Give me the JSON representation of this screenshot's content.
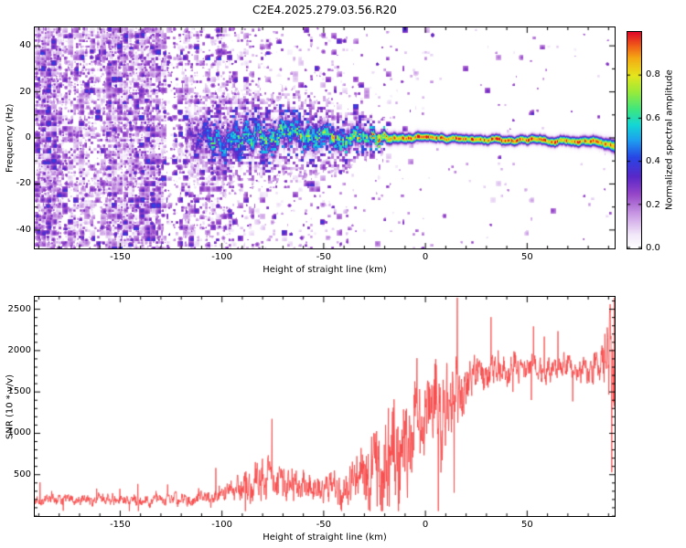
{
  "chart_data": [
    {
      "type": "heatmap",
      "title": "C2E4.2025.279.03.56.R20",
      "xlabel": "Height of straight line (km)",
      "ylabel": "Frequency (Hz)",
      "xlim": [
        -192,
        93
      ],
      "ylim": [
        -48,
        48
      ],
      "xticks": [
        {
          "v": -150,
          "label": "-150"
        },
        {
          "v": -100,
          "label": "-100"
        },
        {
          "v": -50,
          "label": "-50"
        },
        {
          "v": 0,
          "label": "0"
        },
        {
          "v": 50,
          "label": "50"
        }
      ],
      "yticks": [
        {
          "v": -40,
          "label": "-40"
        },
        {
          "v": -20,
          "label": "-20"
        },
        {
          "v": 0,
          "label": "0"
        },
        {
          "v": 20,
          "label": "20"
        },
        {
          "v": 40,
          "label": "40"
        }
      ],
      "colorbar": {
        "label": "Normalized spectral amplitude",
        "lim": [
          0,
          1
        ],
        "ticks": [
          {
            "v": 0,
            "label": "0.0"
          },
          {
            "v": 0.2,
            "label": "0.2"
          },
          {
            "v": 0.4,
            "label": "0.4"
          },
          {
            "v": 0.6,
            "label": "0.6"
          },
          {
            "v": 0.8,
            "label": "0.8"
          }
        ]
      },
      "colormap": [
        [
          0.0,
          "#ffffff"
        ],
        [
          0.06,
          "#f3e9fa"
        ],
        [
          0.15,
          "#cda0e6"
        ],
        [
          0.25,
          "#9646c8"
        ],
        [
          0.33,
          "#5a28c8"
        ],
        [
          0.42,
          "#2846e6"
        ],
        [
          0.5,
          "#1ea0f0"
        ],
        [
          0.57,
          "#14d7d7"
        ],
        [
          0.64,
          "#3ce682"
        ],
        [
          0.72,
          "#96eb3c"
        ],
        [
          0.8,
          "#e6e61e"
        ],
        [
          0.88,
          "#f5aa14"
        ],
        [
          0.94,
          "#f05a19"
        ],
        [
          1.0,
          "#e10a28"
        ]
      ],
      "noise_profile": {
        "x": [
          -192,
          -160,
          -140,
          -120,
          -100,
          -80,
          -60,
          -40,
          -20,
          0,
          93
        ],
        "density": [
          0.82,
          0.74,
          0.6,
          0.42,
          0.3,
          0.22,
          0.16,
          0.1,
          0.045,
          0.02,
          0.012
        ]
      },
      "signal_track": {
        "x": [
          -118,
          -105,
          -90,
          -75,
          -60,
          -50,
          -40,
          -30,
          -22,
          -15,
          -8,
          0,
          15,
          30,
          50,
          70,
          85,
          91,
          93
        ],
        "freq": [
          1,
          -1,
          1.5,
          -1.5,
          1,
          -0.5,
          0.5,
          0,
          0,
          0,
          0,
          0,
          -0.3,
          -0.6,
          -1,
          -1.4,
          -1.8,
          -2.2,
          -3.2
        ],
        "amp": [
          0.25,
          0.5,
          0.55,
          0.6,
          0.6,
          0.62,
          0.68,
          0.75,
          0.85,
          0.92,
          0.95,
          0.95,
          0.95,
          0.95,
          0.94,
          0.92,
          0.9,
          0.9,
          0.85
        ],
        "width_hz": [
          6,
          7,
          7,
          6.5,
          6,
          5.5,
          4.5,
          3.5,
          2.8,
          2.4,
          2.2,
          2,
          2,
          2,
          2,
          2.1,
          2.3,
          2.6,
          3
        ],
        "wiggle_hz": [
          5,
          5,
          5,
          4.5,
          4,
          3.5,
          2.5,
          1.6,
          1,
          0.8,
          0.6,
          0.6,
          0.6,
          0.6,
          0.6,
          0.6,
          0.7,
          0.8,
          1
        ]
      }
    },
    {
      "type": "line",
      "xlabel": "Height of straight line (km)",
      "ylabel": "SNR (10 * v/v)",
      "color": "#f74545",
      "xlim": [
        -192,
        93
      ],
      "ylim": [
        0,
        2650
      ],
      "xticks": [
        {
          "v": -150,
          "label": "-150"
        },
        {
          "v": -100,
          "label": "-100"
        },
        {
          "v": -50,
          "label": "-50"
        },
        {
          "v": 0,
          "label": "0"
        },
        {
          "v": 50,
          "label": "50"
        }
      ],
      "yticks": [
        {
          "v": 500,
          "label": "500"
        },
        {
          "v": 1000,
          "label": "1000"
        },
        {
          "v": 1500,
          "label": "1500"
        },
        {
          "v": 2000,
          "label": "2000"
        },
        {
          "v": 2500,
          "label": "2500"
        }
      ],
      "envelope": {
        "x": [
          -192,
          -160,
          -130,
          -110,
          -100,
          -92,
          -85,
          -78,
          -70,
          -62,
          -55,
          -50,
          -45,
          -40,
          -36,
          -32,
          -28,
          -25,
          -22,
          -18,
          -15,
          -12,
          -9,
          -6,
          -3,
          0,
          4,
          8,
          12,
          16,
          20,
          25,
          30,
          40,
          50,
          60,
          70,
          80,
          86,
          89,
          91,
          93
        ],
        "mean": [
          190,
          195,
          205,
          220,
          265,
          330,
          385,
          420,
          380,
          340,
          305,
          295,
          330,
          365,
          390,
          430,
          530,
          650,
          720,
          800,
          900,
          1000,
          1080,
          1180,
          1260,
          1280,
          1220,
          1140,
          1280,
          1430,
          1540,
          1650,
          1740,
          1790,
          1800,
          1790,
          1760,
          1780,
          1850,
          1900,
          1750,
          1650
        ],
        "spread": [
          70,
          75,
          85,
          100,
          135,
          200,
          260,
          300,
          260,
          220,
          200,
          195,
          225,
          265,
          310,
          390,
          540,
          700,
          800,
          850,
          820,
          800,
          760,
          700,
          650,
          620,
          640,
          700,
          620,
          470,
          360,
          280,
          230,
          190,
          175,
          170,
          185,
          210,
          260,
          420,
          900,
          500
        ]
      }
    }
  ]
}
